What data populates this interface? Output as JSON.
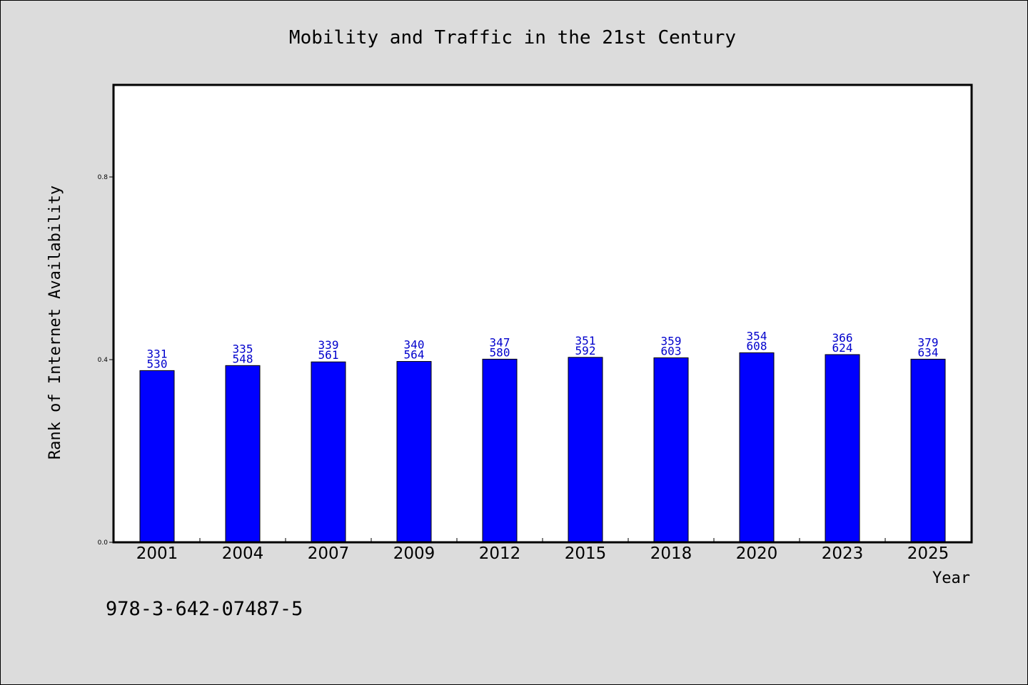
{
  "chart_data": {
    "type": "bar",
    "title": "Mobility and Traffic in the 21st Century",
    "xlabel": "Year",
    "ylabel": "Rank of Internet Availability",
    "categories": [
      "2001",
      "2004",
      "2007",
      "2009",
      "2012",
      "2015",
      "2018",
      "2020",
      "2023",
      "2025"
    ],
    "values": [
      0.376,
      0.387,
      0.395,
      0.396,
      0.401,
      0.405,
      0.404,
      0.415,
      0.411,
      0.401
    ],
    "annotations": [
      [
        "331",
        "530"
      ],
      [
        "335",
        "548"
      ],
      [
        "339",
        "561"
      ],
      [
        "340",
        "564"
      ],
      [
        "347",
        "580"
      ],
      [
        "351",
        "592"
      ],
      [
        "359",
        "603"
      ],
      [
        "354",
        "608"
      ],
      [
        "366",
        "624"
      ],
      [
        "379",
        "634"
      ]
    ],
    "yticks": [
      "0.0",
      "0.4",
      "0.8"
    ],
    "ytick_values": [
      0.0,
      0.4,
      0.8
    ],
    "ylim": [
      0,
      1.0
    ],
    "grid": false,
    "bar_color": "#0000ff",
    "label_color": "#0000cc",
    "background": "#dcdcdc"
  },
  "footer": {
    "isbn": "978-3-642-07487-5"
  }
}
